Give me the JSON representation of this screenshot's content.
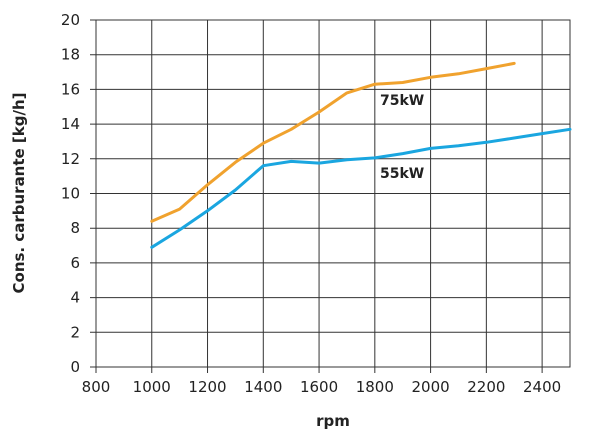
{
  "chart_data": {
    "type": "line",
    "title": "",
    "xlabel": "rpm",
    "ylabel": "Cons. carburante [kg/h]",
    "xlim": [
      800,
      2500
    ],
    "ylim": [
      0,
      20
    ],
    "xticks": [
      800,
      1000,
      1200,
      1400,
      1600,
      1800,
      2000,
      2200,
      2400
    ],
    "yticks": [
      0,
      2,
      4,
      6,
      8,
      10,
      12,
      14,
      16,
      18,
      20
    ],
    "grid": true,
    "legend": "none",
    "series": [
      {
        "name": "75kW",
        "color": "#f0a22e",
        "x": [
          1000,
          1100,
          1200,
          1300,
          1400,
          1500,
          1600,
          1700,
          1800,
          1900,
          2000,
          2100,
          2200,
          2300
        ],
        "y": [
          8.4,
          9.1,
          10.5,
          11.8,
          12.9,
          13.7,
          14.7,
          15.8,
          16.3,
          16.4,
          16.7,
          16.9,
          17.2,
          17.5
        ]
      },
      {
        "name": "55kW",
        "color": "#1aa6e0",
        "x": [
          1000,
          1100,
          1200,
          1300,
          1400,
          1500,
          1600,
          1700,
          1800,
          1900,
          2000,
          2100,
          2200,
          2300,
          2400,
          2500
        ],
        "y": [
          6.9,
          7.9,
          9.0,
          10.2,
          11.6,
          11.85,
          11.75,
          11.95,
          12.05,
          12.3,
          12.6,
          12.75,
          12.95,
          13.2,
          13.45,
          13.7
        ]
      }
    ]
  }
}
